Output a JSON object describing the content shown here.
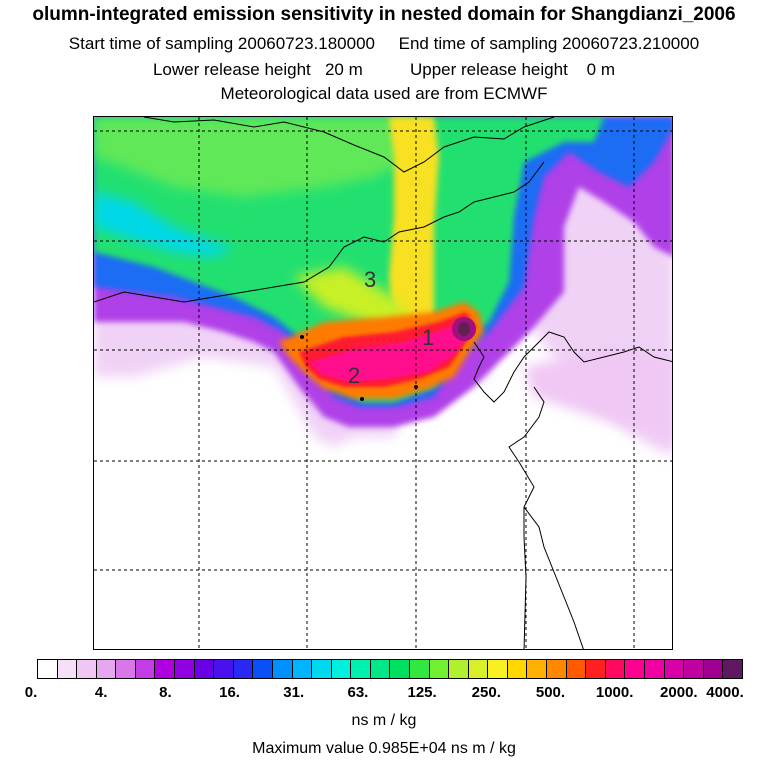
{
  "header": {
    "title": "olumn-integrated emission sensitivity in nested domain for Shangdianzi_2006",
    "sampling": "Start time of sampling 20060723.180000     End time of sampling 20060723.210000",
    "release": "Lower release height   20 m          Upper release height    0 m",
    "met": "Meteorological data used are from ECMWF"
  },
  "map": {
    "labels": [
      {
        "text": "1"
      },
      {
        "text": "2"
      },
      {
        "text": "3"
      }
    ]
  },
  "legend": {
    "ticks": [
      "0.",
      "4.",
      "8.",
      "16.",
      "31.",
      "63.",
      "125.",
      "250.",
      "500.",
      "1000.",
      "2000.",
      "4000."
    ],
    "colors": [
      "#ffffff",
      "#f6e0f8",
      "#efc6f4",
      "#e6a6f0",
      "#d977ea",
      "#c43ce6",
      "#b000e0",
      "#9000e0",
      "#6a00e6",
      "#4a10ee",
      "#2a28f4",
      "#0a50f8",
      "#0090ff",
      "#00b4ff",
      "#00d8f0",
      "#00f0e0",
      "#00f0b0",
      "#00e888",
      "#00e060",
      "#30e840",
      "#70f030",
      "#b0f030",
      "#d8f028",
      "#f8f020",
      "#ffd800",
      "#ffb000",
      "#ff8800",
      "#ff5a00",
      "#ff2020",
      "#ff0a60",
      "#ff0090",
      "#f000a0",
      "#d800a8",
      "#c000a0",
      "#a00090",
      "#601860"
    ],
    "unit": "ns m / kg",
    "max_value": "Maximum value  0.985E+04 ns m / kg"
  }
}
